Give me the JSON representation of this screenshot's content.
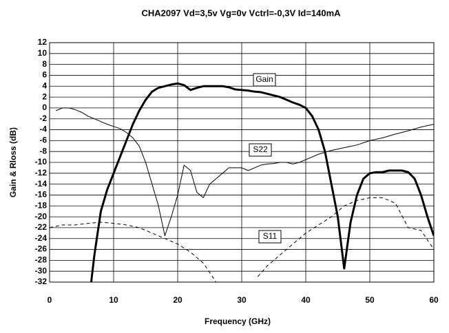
{
  "chart_data": {
    "type": "line",
    "title": "CHA2097     Vd=3,5v     Vg=0v    Vctrl=-0,3V     Id=140mA",
    "xlabel": "Frequency (GHz)",
    "ylabel": "Gain & Rloss (dB)",
    "xlim": [
      0,
      60
    ],
    "xticks": [
      0,
      10,
      20,
      30,
      40,
      50,
      60
    ],
    "ylim": [
      -32,
      12
    ],
    "yticks": [
      -32,
      -30,
      -28,
      -26,
      -24,
      -22,
      -20,
      -18,
      -16,
      -14,
      -12,
      -10,
      -8,
      -6,
      -4,
      -2,
      0,
      2,
      4,
      6,
      8,
      10,
      12
    ],
    "grid": true,
    "series": [
      {
        "name": "Gain",
        "color": "#000000",
        "x": [
          6.5,
          7,
          8,
          9,
          10,
          11,
          12,
          13,
          14,
          15,
          16,
          17,
          18,
          19,
          20,
          21,
          22,
          23,
          24,
          25,
          26,
          27,
          28,
          29,
          30,
          31,
          32,
          33,
          34,
          35,
          36,
          37,
          38,
          39,
          40,
          41,
          42,
          43,
          44,
          45,
          46,
          47,
          48,
          49,
          50,
          51,
          52,
          53,
          54,
          55,
          56,
          57,
          58,
          59,
          60
        ],
        "values": [
          -32,
          -27,
          -19,
          -15,
          -12,
          -9,
          -6,
          -3,
          -0.5,
          1.5,
          3,
          3.7,
          4,
          4.3,
          4.5,
          4.2,
          3.3,
          3.7,
          4,
          4,
          4,
          4,
          3.8,
          3.4,
          3.3,
          3.2,
          3,
          2.9,
          2.6,
          2.3,
          2,
          1.5,
          1,
          0.6,
          0,
          -1.5,
          -4,
          -8,
          -14,
          -20,
          -29.5,
          -21,
          -16,
          -13,
          -12,
          -11.8,
          -11.8,
          -11.5,
          -11.5,
          -11.5,
          -11.8,
          -13,
          -16,
          -20,
          -23.5
        ]
      },
      {
        "name": "S22",
        "color": "#000000",
        "x": [
          1,
          2,
          3,
          4,
          5,
          6,
          7,
          8,
          9,
          10,
          11,
          12,
          13,
          14,
          15,
          16,
          17,
          18,
          19,
          20,
          21,
          22,
          23,
          24,
          25,
          26,
          27,
          28,
          29,
          30,
          31,
          32,
          33,
          34,
          35,
          36,
          37,
          38,
          39,
          40,
          42,
          44,
          46,
          48,
          50,
          52,
          54,
          56,
          58,
          60
        ],
        "values": [
          -0.5,
          0,
          0,
          -0.3,
          -0.8,
          -1.5,
          -2,
          -2.5,
          -3,
          -3.4,
          -3.8,
          -4.5,
          -5.5,
          -7,
          -10,
          -14,
          -18,
          -23.5,
          -20,
          -16,
          -10.5,
          -11.5,
          -15.5,
          -16.5,
          -14,
          -13,
          -12,
          -11,
          -11,
          -11,
          -11.5,
          -11,
          -10.5,
          -10.3,
          -10.2,
          -10,
          -10,
          -10.3,
          -10,
          -9.5,
          -8.5,
          -7.8,
          -7.3,
          -6.8,
          -6,
          -5.5,
          -4.8,
          -4.2,
          -3.5,
          -3
        ]
      },
      {
        "name": "S11",
        "color": "#000000",
        "x": [
          0,
          2,
          4,
          6,
          8,
          10,
          12,
          14,
          16,
          18,
          20,
          22,
          24,
          26,
          29,
          32.5,
          34,
          36,
          38,
          40,
          42,
          44,
          46,
          48,
          50,
          52,
          54,
          56,
          58,
          60
        ],
        "values": [
          -22,
          -21.5,
          -21.5,
          -21.2,
          -21,
          -21.2,
          -21.5,
          -22,
          -23,
          -24,
          -25,
          -26.5,
          -28.5,
          -32,
          null,
          -31,
          -29,
          -27,
          -25,
          -23,
          -21.5,
          -20,
          -18,
          -17,
          -16.5,
          -16.5,
          -17.5,
          -22,
          -22.5,
          -26
        ]
      }
    ]
  }
}
